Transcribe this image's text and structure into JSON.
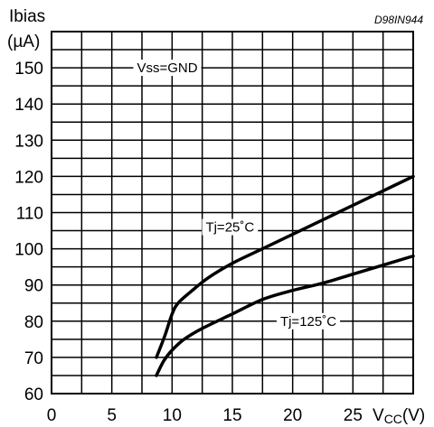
{
  "chart_data": {
    "type": "line",
    "code": "D98IN944",
    "ylabel_line1": "Ibias",
    "ylabel_line2": "(µA)",
    "xlabel_main": "V",
    "xlabel_sub": "CC",
    "xlabel_unit": "(V)",
    "xlim": [
      0,
      30
    ],
    "ylim": [
      60,
      160
    ],
    "xticks": [
      "0",
      "5",
      "10",
      "15",
      "20",
      "25"
    ],
    "yticks": [
      "60",
      "70",
      "80",
      "90",
      "100",
      "110",
      "120",
      "130",
      "140",
      "150"
    ],
    "condition": "Vss=GND",
    "series": [
      {
        "name": "Tj=25˚C",
        "x": [
          8.7,
          9.4,
          10.0,
          10.5,
          11.5,
          13.0,
          15.0,
          17.5,
          20.0,
          22.5,
          25.0,
          27.5,
          30.0
        ],
        "y": [
          70,
          76,
          82,
          85,
          88,
          92,
          96,
          100,
          104,
          108,
          112,
          116,
          120
        ]
      },
      {
        "name": "Tj=125˚C",
        "x": [
          8.7,
          9.3,
          10.0,
          11.0,
          12.5,
          15.0,
          17.5,
          20.0,
          22.5,
          25.0,
          27.5,
          30.0
        ],
        "y": [
          65,
          69,
          72,
          75,
          78,
          82,
          86,
          88.5,
          90.5,
          93,
          95.5,
          98
        ]
      }
    ]
  }
}
